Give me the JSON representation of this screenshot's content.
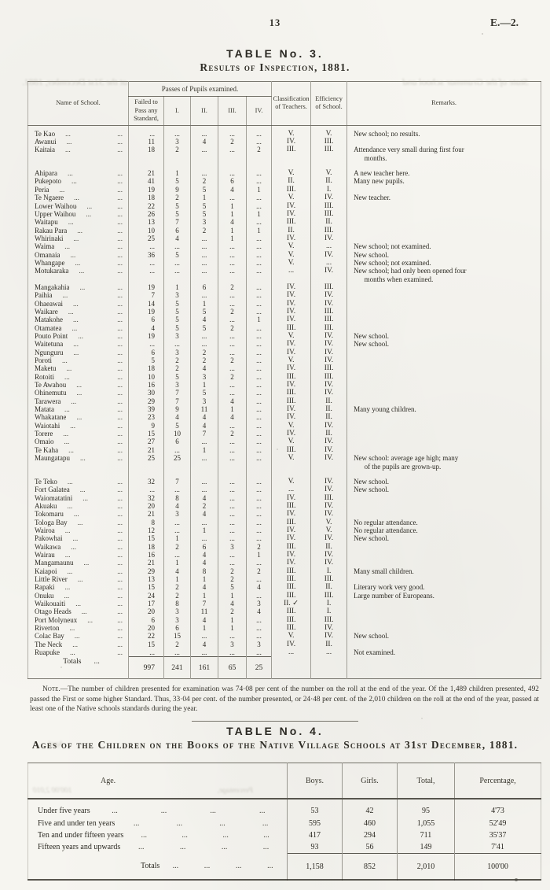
{
  "page": {
    "number": "13",
    "doc_ref": "E.—2."
  },
  "table3": {
    "title": "TABLE No. 3.",
    "subtitle": "Results of Inspection, 1881.",
    "leader": "...",
    "header": {
      "name": "Name of School.",
      "passes_group": "Passes of Pupils examined.",
      "failed": "Failed to Pass any Standard,",
      "s1": "I.",
      "s2": "II.",
      "s3": "III.",
      "s4": "IV.",
      "teachers": "Classifica­tion of Teachers.",
      "efficiency": "Efficiency of School.",
      "remarks": "Remarks."
    },
    "rows": [
      {
        "n": "Te Kao",
        "f": "...",
        "p1": "...",
        "p2": "...",
        "p3": "...",
        "p4": "...",
        "t": "V.",
        "e": "V.",
        "r": "New school; no results."
      },
      {
        "n": "Awanui",
        "f": "11",
        "p1": "3",
        "p2": "4",
        "p3": "2",
        "p4": "...",
        "t": "IV.",
        "e": "III.",
        "r": ""
      },
      {
        "n": "Kaitaia",
        "f": "18",
        "p1": "2",
        "p2": "...",
        "p3": "...",
        "p4": "2",
        "t": "III.",
        "e": "III.",
        "r": "Attendance very small during first four\n      months.",
        "g": 1
      },
      {
        "n": "Ahipara",
        "f": "21",
        "p1": "1",
        "p2": "...",
        "p3": "...",
        "p4": "...",
        "t": "V.",
        "e": "V.",
        "r": "A new teacher here."
      },
      {
        "n": "Pukepoto",
        "f": "41",
        "p1": "5",
        "p2": "2",
        "p3": "6",
        "p4": "...",
        "t": "II.",
        "e": "II.",
        "r": "Many new pupils."
      },
      {
        "n": "Peria",
        "f": "19",
        "p1": "9",
        "p2": "5",
        "p3": "4",
        "p4": "1",
        "t": "III.",
        "e": "I.",
        "r": ""
      },
      {
        "n": "Te Ngaere",
        "f": "18",
        "p1": "2",
        "p2": "1",
        "p3": "...",
        "p4": "...",
        "t": "V.",
        "e": "IV.",
        "r": "New teacher."
      },
      {
        "n": "Lower Waihou",
        "f": "22",
        "p1": "5",
        "p2": "5",
        "p3": "1",
        "p4": "...",
        "t": "IV.",
        "e": "III.",
        "r": ""
      },
      {
        "n": "Upper Waihou",
        "f": "26",
        "p1": "5",
        "p2": "5",
        "p3": "1",
        "p4": "1",
        "t": "IV.",
        "e": "III.",
        "r": ""
      },
      {
        "n": "Waitapu",
        "f": "13",
        "p1": "7",
        "p2": "3",
        "p3": "4",
        "p4": "...",
        "t": "III.",
        "e": "II.",
        "r": ""
      },
      {
        "n": "Rakau Para",
        "f": "10",
        "p1": "6",
        "p2": "2",
        "p3": "1",
        "p4": "1",
        "t": "II.",
        "e": "III.",
        "r": ""
      },
      {
        "n": "Whirinaki",
        "f": "25",
        "p1": "4",
        "p2": "...",
        "p3": "1",
        "p4": "...",
        "t": "IV.",
        "e": "IV.",
        "r": ""
      },
      {
        "n": "Waima",
        "f": "...",
        "p1": "...",
        "p2": "...",
        "p3": "...",
        "p4": "...",
        "t": "V.",
        "e": "...",
        "r": "New school; not examined."
      },
      {
        "n": "Omanaia",
        "f": "36",
        "p1": "5",
        "p2": "...",
        "p3": "...",
        "p4": "...",
        "t": "V.",
        "e": "IV.",
        "r": "New school."
      },
      {
        "n": "Whangape",
        "f": "...",
        "p1": "...",
        "p2": "...",
        "p3": "...",
        "p4": "...",
        "t": "V.",
        "e": "...",
        "r": "New school; not examined."
      },
      {
        "n": "Motukaraka",
        "f": "...",
        "p1": "...",
        "p2": "...",
        "p3": "...",
        "p4": "...",
        "t": "...",
        "e": "IV.",
        "r": "New school; had only been opened four\n      months when examined."
      },
      {
        "n": "Mangakahia",
        "f": "19",
        "p1": "1",
        "p2": "6",
        "p3": "2",
        "p4": "...",
        "t": "IV.",
        "e": "III.",
        "r": ""
      },
      {
        "n": "Paihia",
        "f": "7",
        "p1": "3",
        "p2": "...",
        "p3": "...",
        "p4": "...",
        "t": "IV.",
        "e": "IV.",
        "r": ""
      },
      {
        "n": "Ohaeawai",
        "f": "14",
        "p1": "5",
        "p2": "1",
        "p3": "...",
        "p4": "...",
        "t": "IV.",
        "e": "IV.",
        "r": ""
      },
      {
        "n": "Waikare",
        "f": "19",
        "p1": "5",
        "p2": "5",
        "p3": "2",
        "p4": "...",
        "t": "IV.",
        "e": "III.",
        "r": ""
      },
      {
        "n": "Matakohe",
        "f": "6",
        "p1": "5",
        "p2": "4",
        "p3": "...",
        "p4": "1",
        "t": "IV.",
        "e": "III.",
        "r": ""
      },
      {
        "n": "Otamatea",
        "f": "4",
        "p1": "5",
        "p2": "5",
        "p3": "2",
        "p4": "...",
        "t": "III.",
        "e": "III.",
        "r": ""
      },
      {
        "n": "Pouto Point",
        "f": "19",
        "p1": "3",
        "p2": "...",
        "p3": "...",
        "p4": "...",
        "t": "V.",
        "e": "IV.",
        "r": "New school."
      },
      {
        "n": "Waitetuna",
        "f": "...",
        "p1": "...",
        "p2": "...",
        "p3": "...",
        "p4": "...",
        "t": "IV.",
        "e": "IV.",
        "r": "New school."
      },
      {
        "n": "Ngunguru",
        "f": "6",
        "p1": "3",
        "p2": "2",
        "p3": "...",
        "p4": "...",
        "t": "IV.",
        "e": "IV.",
        "r": ""
      },
      {
        "n": "Poroti",
        "f": "5",
        "p1": "2",
        "p2": "2",
        "p3": "2",
        "p4": "...",
        "t": "V.",
        "e": "IV.",
        "r": ""
      },
      {
        "n": "Maketu",
        "f": "18",
        "p1": "2",
        "p2": "4",
        "p3": "...",
        "p4": "...",
        "t": "IV.",
        "e": "III.",
        "r": ""
      },
      {
        "n": "Rotoiti",
        "f": "10",
        "p1": "5",
        "p2": "3",
        "p3": "2",
        "p4": "...",
        "t": "III.",
        "e": "III.",
        "r": ""
      },
      {
        "n": "Te Awahou",
        "f": "16",
        "p1": "3",
        "p2": "1",
        "p3": "...",
        "p4": "...",
        "t": "IV.",
        "e": "IV.",
        "r": ""
      },
      {
        "n": "Ohinemutu",
        "f": "30",
        "p1": "7",
        "p2": "5",
        "p3": "...",
        "p4": "...",
        "t": "III.",
        "e": "IV.",
        "r": ""
      },
      {
        "n": "Tarawera",
        "f": "29",
        "p1": "7",
        "p2": "3",
        "p3": "4",
        "p4": "...",
        "t": "III.",
        "e": "II.",
        "r": ""
      },
      {
        "n": "Matata",
        "f": "39",
        "p1": "9",
        "p2": "11",
        "p3": "1",
        "p4": "...",
        "t": "IV.",
        "e": "II.",
        "r": "Many young children."
      },
      {
        "n": "Whakatane",
        "f": "23",
        "p1": "4",
        "p2": "4",
        "p3": "4",
        "p4": "...",
        "t": "IV.",
        "e": "II.",
        "r": ""
      },
      {
        "n": "Waiotahi",
        "f": "9",
        "p1": "5",
        "p2": "4",
        "p3": "...",
        "p4": "...",
        "t": "V.",
        "e": "IV.",
        "r": ""
      },
      {
        "n": "Torere",
        "f": "15",
        "p1": "10",
        "p2": "7",
        "p3": "2",
        "p4": "...",
        "t": "IV.",
        "e": "II.",
        "r": ""
      },
      {
        "n": "Omaio",
        "f": "27",
        "p1": "6",
        "p2": "...",
        "p3": "...",
        "p4": "...",
        "t": "V.",
        "e": "IV.",
        "r": ""
      },
      {
        "n": "Te Kaha",
        "f": "21",
        "p1": "...",
        "p2": "1",
        "p3": "...",
        "p4": "...",
        "t": "III.",
        "e": "IV.",
        "r": ""
      },
      {
        "n": "Maungatapu",
        "f": "25",
        "p1": "25",
        "p2": "...",
        "p3": "...",
        "p4": "...",
        "t": "V.",
        "e": "IV.",
        "r": "New school: average age high; many\n      of the pupils are grown-up.",
        "g": 1
      },
      {
        "n": "Te Teko",
        "f": "32",
        "p1": "7",
        "p2": "...",
        "p3": "...",
        "p4": "...",
        "t": "V.",
        "e": "IV.",
        "r": "New school."
      },
      {
        "n": "Fort Galatea",
        "f": "...",
        "p1": "...",
        "p2": "...",
        "p3": "...",
        "p4": "...",
        "t": "...",
        "e": "IV.",
        "r": "New school."
      },
      {
        "n": "Waiomatatini",
        "f": "32",
        "p1": "8",
        "p2": "4",
        "p3": "...",
        "p4": "...",
        "t": "IV.",
        "e": "III.",
        "r": ""
      },
      {
        "n": "Akuaku",
        "f": "20",
        "p1": "4",
        "p2": "2",
        "p3": "...",
        "p4": "...",
        "t": "III.",
        "e": "IV.",
        "r": ""
      },
      {
        "n": "Tokomaru",
        "f": "21",
        "p1": "3",
        "p2": "4",
        "p3": "...",
        "p4": "...",
        "t": "IV.",
        "e": "IV.",
        "r": ""
      },
      {
        "n": "Tologa Bay",
        "f": "8",
        "p1": "...",
        "p2": "...",
        "p3": "...",
        "p4": "...",
        "t": "III.",
        "e": "V.",
        "r": "No regular attendance."
      },
      {
        "n": "Wairoa",
        "f": "12",
        "p1": "...",
        "p2": "1",
        "p3": "...",
        "p4": "...",
        "t": "IV.",
        "e": "V.",
        "r": "No regular attendance."
      },
      {
        "n": "Pakowhai",
        "f": "15",
        "p1": "1",
        "p2": "...",
        "p3": "...",
        "p4": "...",
        "t": "IV.",
        "e": "IV.",
        "r": "New school."
      },
      {
        "n": "Waikawa",
        "f": "18",
        "p1": "2",
        "p2": "6",
        "p3": "3",
        "p4": "2",
        "t": "III.",
        "e": "II.",
        "r": ""
      },
      {
        "n": "Wairau",
        "f": "16",
        "p1": "...",
        "p2": "4",
        "p3": "...",
        "p4": "1",
        "t": "IV.",
        "e": "IV.",
        "r": ""
      },
      {
        "n": "Mangamaunu",
        "f": "21",
        "p1": "1",
        "p2": "4",
        "p3": "...",
        "p4": "...",
        "t": "IV.",
        "e": "IV.",
        "r": ""
      },
      {
        "n": "Kaiapoi",
        "f": "29",
        "p1": "4",
        "p2": "8",
        "p3": "2",
        "p4": "2",
        "t": "III.",
        "e": "I.",
        "r": "Many small children."
      },
      {
        "n": "Little River",
        "f": "13",
        "p1": "1",
        "p2": "1",
        "p3": "2",
        "p4": "...",
        "t": "III.",
        "e": "III.",
        "r": ""
      },
      {
        "n": "Rapaki",
        "f": "15",
        "p1": "2",
        "p2": "4",
        "p3": "5",
        "p4": "4",
        "t": "III.",
        "e": "II.",
        "r": "Literary work very good."
      },
      {
        "n": "Onuku",
        "f": "24",
        "p1": "2",
        "p2": "1",
        "p3": "1",
        "p4": "...",
        "t": "III.",
        "e": "III.",
        "r": "Large number of Europeans."
      },
      {
        "n": "Waikouaiti",
        "f": "17",
        "p1": "8",
        "p2": "7",
        "p3": "4",
        "p4": "3",
        "t": "II. ✓",
        "e": "I.",
        "r": ""
      },
      {
        "n": "Otago Heads",
        "f": "20",
        "p1": "3",
        "p2": "11",
        "p3": "2",
        "p4": "4",
        "t": "III.",
        "e": "I.",
        "r": ""
      },
      {
        "n": "Port Molyneux",
        "f": "6",
        "p1": "3",
        "p2": "4",
        "p3": "1",
        "p4": "...",
        "t": "III.",
        "e": "III.",
        "r": ""
      },
      {
        "n": "Riverton",
        "f": "20",
        "p1": "6",
        "p2": "1",
        "p3": "1",
        "p4": "...",
        "t": "III.",
        "e": "IV.",
        "r": ""
      },
      {
        "n": "Colac Bay",
        "f": "22",
        "p1": "15",
        "p2": "...",
        "p3": "...",
        "p4": "...",
        "t": "V.",
        "e": "IV.",
        "r": "New school."
      },
      {
        "n": "The Neck",
        "f": "15",
        "p1": "2",
        "p2": "4",
        "p3": "3",
        "p4": "3",
        "t": "IV.",
        "e": "II.",
        "r": ""
      },
      {
        "n": "Ruapuke",
        "f": "...",
        "p1": "...",
        "p2": "...",
        "p3": "...",
        "p4": "...",
        "t": "...",
        "e": "...",
        "r": "Not examined."
      }
    ],
    "totals": {
      "label": "Totals",
      "leader": "...",
      "failed": "997",
      "s1": "241",
      "s2": "161",
      "s3": "65",
      "s4": "25"
    }
  },
  "note": {
    "label": "Note.",
    "text": "—The number of children presented for examination was 74·08 per cent of the number on the roll at the end of the year.  Of the 1,489 children presented, 492 passed the First or some higher Standard.  Thus, 33·04 per cent. of the number presented, or 24·48 per cent. of the 2,010 children on the roll at the end of the year, passed at least one of the Native schools standards during the year."
  },
  "table4": {
    "title": "TABLE No. 4.",
    "subtitle": "Ages of the Children on the Books of the Native Village Schools at 31st December, 1881.",
    "leader": "...",
    "headers": [
      "Age.",
      "Boys.",
      "Girls.",
      "Total,",
      "Percentage,"
    ],
    "rows": [
      [
        "Under five years",
        "53",
        "42",
        "95",
        "4'73"
      ],
      [
        "Five and under ten years",
        "595",
        "460",
        "1,055",
        "52'49"
      ],
      [
        "Ten and under fifteen years",
        "417",
        "294",
        "711",
        "35'37"
      ],
      [
        "Fifteen years and upwards",
        "93",
        "56",
        "149",
        "7'41"
      ]
    ],
    "totals": [
      "Totals",
      "1,158",
      "852",
      "2,010",
      "100'00"
    ]
  },
  "bleedthrough": {
    "subtitle_left": "State of the Grammar school and",
    "subtitle_right": "at the 31st December, 1881.",
    "t4_left_a": "Percentage,",
    "t4_left_b": "100'00  2,010",
    "t4_left_c": "Aged."
  }
}
